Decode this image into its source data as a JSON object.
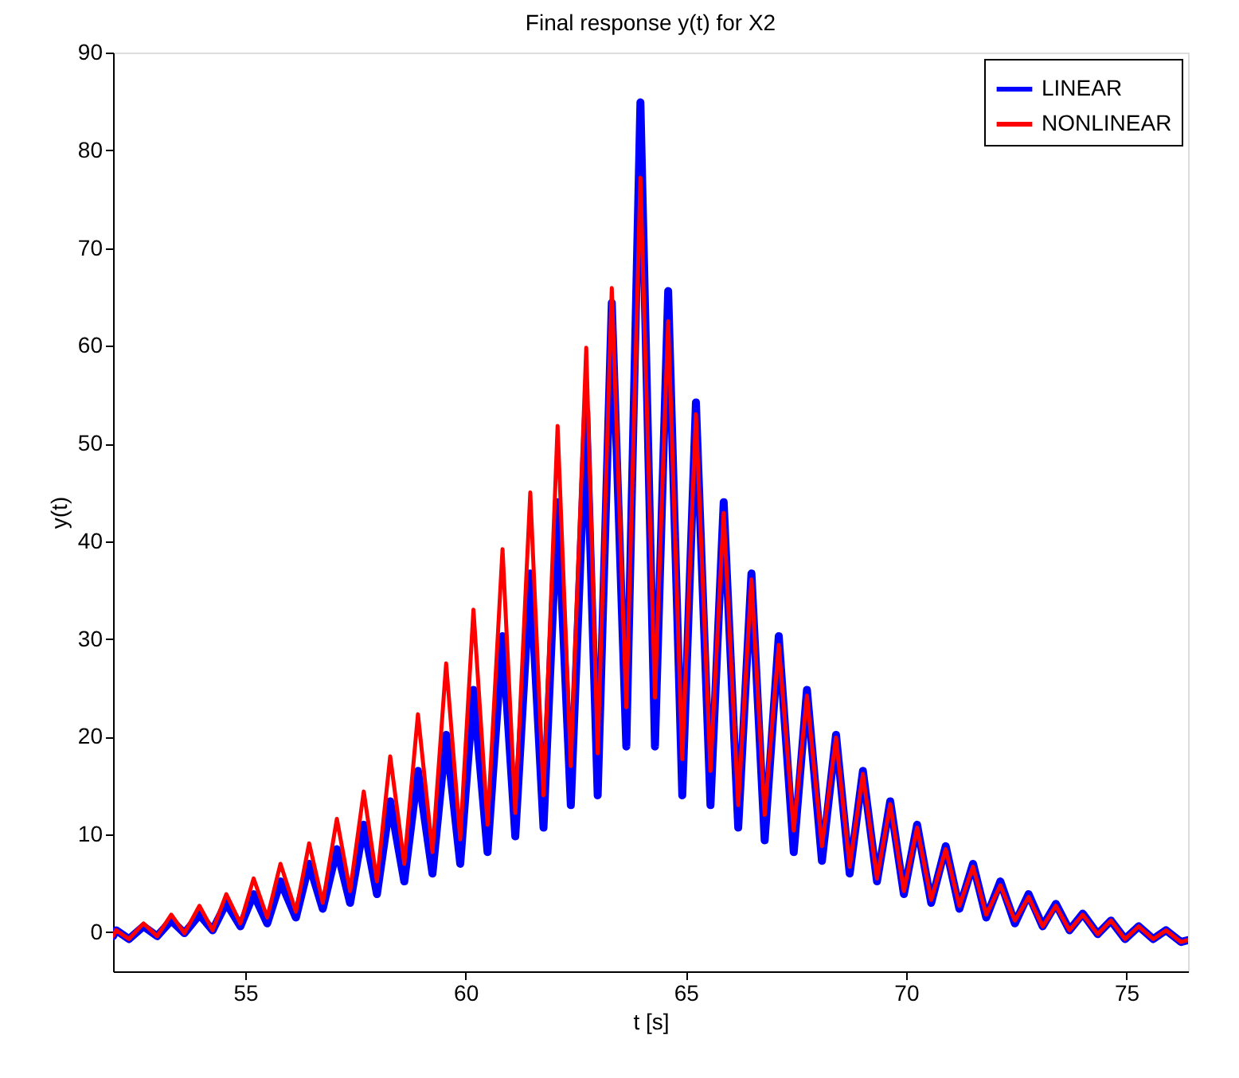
{
  "chart_data": {
    "type": "line",
    "title": "Final response y(t) for X2",
    "xlabel": "t [s]",
    "ylabel": "y(t)",
    "x": [
      52.0,
      52.07,
      52.36,
      52.69,
      53.0,
      53.32,
      53.62,
      53.96,
      54.26,
      54.57,
      54.89,
      55.19,
      55.5,
      55.8,
      56.15,
      56.45,
      56.76,
      57.08,
      57.38,
      57.69,
      57.99,
      58.29,
      58.61,
      58.92,
      59.25,
      59.56,
      59.88,
      60.18,
      60.5,
      60.84,
      61.13,
      61.47,
      61.77,
      62.09,
      62.39,
      62.74,
      63.0,
      63.32,
      63.65,
      63.97,
      64.3,
      64.6,
      64.92,
      65.23,
      65.56,
      65.86,
      66.19,
      66.49,
      66.79,
      67.11,
      67.45,
      67.75,
      68.09,
      68.41,
      68.72,
      69.02,
      69.34,
      69.64,
      69.95,
      70.25,
      70.57,
      70.9,
      71.21,
      71.52,
      71.82,
      72.14,
      72.47,
      72.78,
      73.1,
      73.4,
      73.71,
      74.01,
      74.35,
      74.65,
      74.97,
      75.28,
      75.61,
      75.9,
      76.24,
      76.4
    ],
    "series": [
      {
        "name": "LINEAR",
        "color": "#0000ff",
        "values": [
          -0.4,
          0.2,
          -0.7,
          0.6,
          -0.4,
          1.2,
          -0.1,
          1.8,
          0.2,
          3.0,
          0.6,
          3.9,
          0.9,
          5.2,
          1.5,
          7.0,
          2.4,
          8.5,
          3.0,
          11.0,
          3.9,
          13.4,
          5.2,
          16.5,
          6.0,
          20.2,
          7.0,
          24.8,
          8.2,
          30.3,
          9.8,
          36.7,
          10.7,
          44,
          13,
          53.3,
          14,
          64.4,
          19,
          84.9,
          19,
          65.6,
          14,
          54.2,
          13,
          44,
          10.7,
          36.7,
          9.4,
          30.3,
          8.2,
          24.8,
          7.3,
          20.2,
          6.0,
          16.5,
          5.2,
          13.4,
          3.9,
          11.0,
          3.0,
          8.8,
          2.4,
          7.0,
          1.5,
          5.2,
          0.9,
          3.9,
          0.6,
          2.9,
          0.2,
          1.9,
          -0.2,
          1.2,
          -0.7,
          0.6,
          -0.7,
          0.2,
          -1.0,
          -0.8
        ]
      },
      {
        "name": "NONLINEAR",
        "color": "#ff0000",
        "values": [
          -0.4,
          0.2,
          -0.7,
          0.9,
          -0.4,
          1.8,
          -0.1,
          2.7,
          0.2,
          3.9,
          0.9,
          5.5,
          1.5,
          7.0,
          2.1,
          9.1,
          3.0,
          11.6,
          4.2,
          14.4,
          5.2,
          18.0,
          7.0,
          22.3,
          8.2,
          27.5,
          9.5,
          33,
          11,
          39.2,
          12.2,
          45,
          14,
          51.8,
          17,
          59.8,
          18.3,
          65.9,
          23,
          77.2,
          24,
          62.5,
          17.7,
          53,
          16.5,
          42.9,
          13,
          36.1,
          12,
          29.4,
          10.4,
          24.2,
          8.8,
          19.9,
          6.7,
          16.2,
          5.5,
          13.1,
          4.2,
          10.7,
          3.3,
          8.5,
          2.7,
          6.7,
          1.8,
          4.8,
          1.2,
          3.6,
          0.6,
          2.7,
          0.2,
          1.8,
          -0.2,
          1.2,
          -0.7,
          0.6,
          -0.7,
          0.2,
          -1.0,
          -0.8
        ]
      }
    ],
    "xlim": [
      52,
      76.4
    ],
    "xticks": [
      55,
      60,
      65,
      70,
      75
    ],
    "ylim": [
      -4,
      90
    ],
    "yticks": [
      0,
      10,
      20,
      30,
      40,
      50,
      60,
      70,
      80,
      90
    ],
    "legend": "top right",
    "grid": false,
    "marker": "none",
    "line_style": "solid"
  }
}
